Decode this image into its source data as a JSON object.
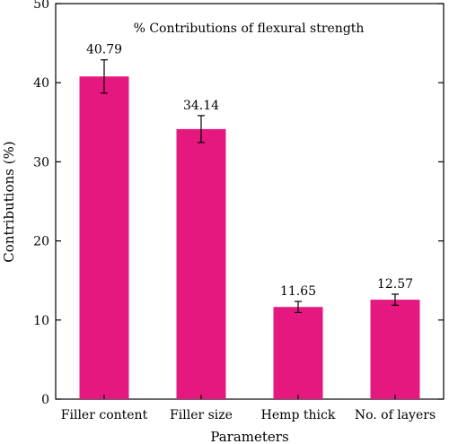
{
  "chart_data": {
    "type": "bar",
    "title": "% Contributions of flexural strength",
    "xlabel": "Parameters",
    "ylabel": "Contributions (%)",
    "categories": [
      "Filler content",
      "Filler size",
      "Hemp thick",
      "No. of layers"
    ],
    "values": [
      40.79,
      34.14,
      11.65,
      12.57
    ],
    "value_labels": [
      "40.79",
      "34.14",
      "11.65",
      "12.57"
    ],
    "error_bars": [
      2.1,
      1.7,
      0.7,
      0.7
    ],
    "ylim": [
      0,
      50
    ],
    "yticks": [
      0,
      10,
      20,
      30,
      40,
      50
    ],
    "bar_color": "#E5187F",
    "grid": false,
    "legend": "none"
  }
}
